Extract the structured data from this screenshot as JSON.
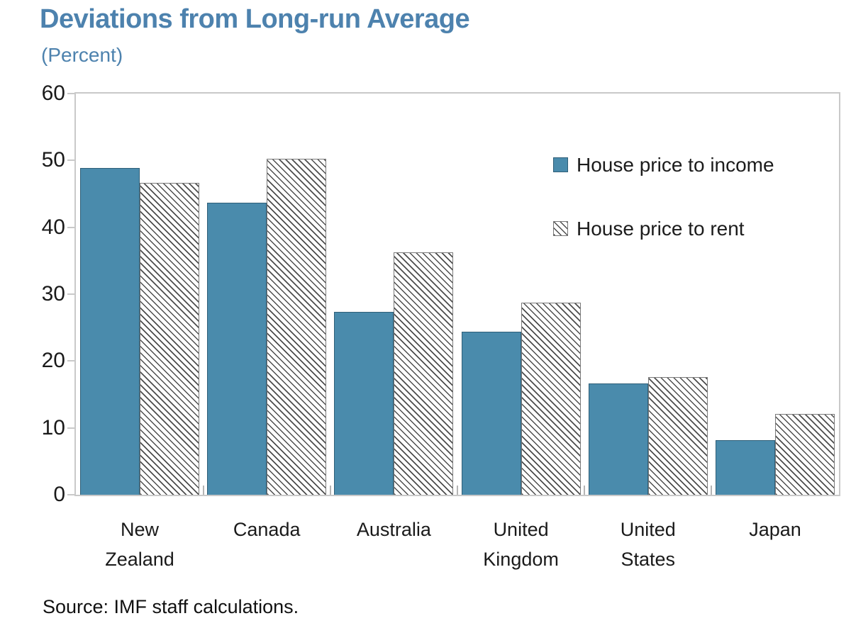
{
  "title": "Deviations from Long-run Average",
  "subtitle": "(Percent)",
  "source": "Source: IMF staff calculations.",
  "colors": {
    "title_blue": "#4d82ae",
    "bar_blue": "#4a8bac",
    "bar_blue_border": "#2f5f78",
    "axis_gray": "#c9c9c9",
    "hatch_line": "#4d4d4d"
  },
  "chart_data": {
    "type": "bar",
    "title": "Deviations from Long-run Average",
    "subtitle": "(Percent)",
    "categories": [
      "New\nZealand",
      "Canada",
      "Australia",
      "United\nKingdom",
      "United\nStates",
      "Japan"
    ],
    "series": [
      {
        "name": "House price to income",
        "style": "solid-blue",
        "values": [
          48.9,
          43.7,
          27.4,
          24.4,
          16.6,
          8.2
        ]
      },
      {
        "name": "House price to rent",
        "style": "white-hatched",
        "values": [
          46.6,
          50.3,
          36.3,
          28.7,
          17.6,
          12.1
        ]
      }
    ],
    "ylabel": "Percent",
    "ylim": [
      0,
      60
    ],
    "yticks": [
      "0",
      "10",
      "20",
      "30",
      "40",
      "50",
      "60"
    ],
    "grid": false,
    "legend_position": "inside-top-right"
  }
}
